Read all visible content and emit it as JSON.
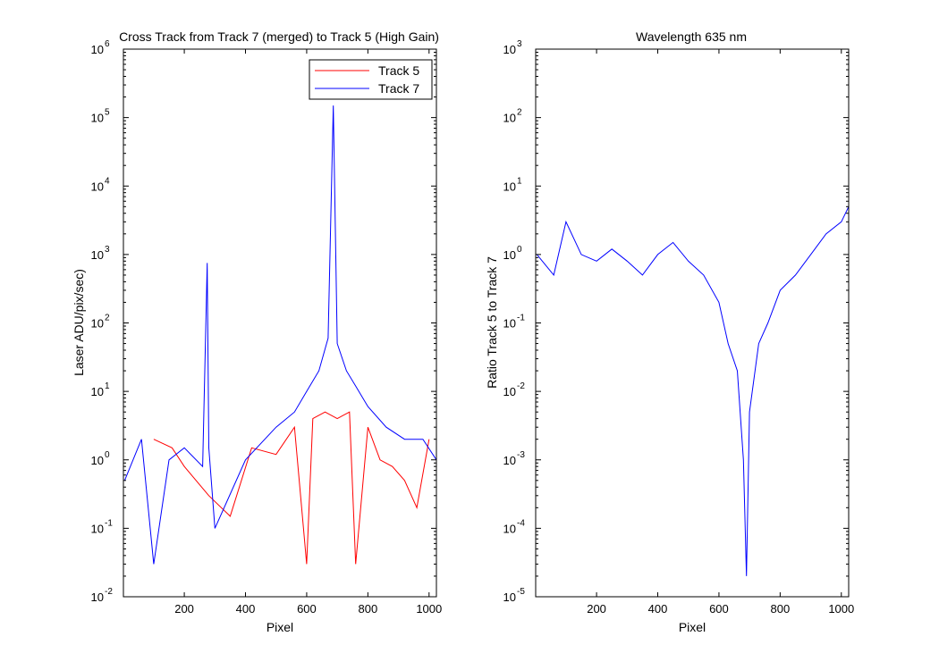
{
  "colors": {
    "track5": "#ff0000",
    "track7": "#0000ff",
    "axes": "#000000",
    "background": "#ffffff"
  },
  "chart_data": [
    {
      "type": "line",
      "title": "Cross Track from Track 7 (merged) to Track 5 (High Gain)",
      "xlabel": "Pixel",
      "ylabel": "Laser ADU/pix/sec)",
      "x_scale": "linear",
      "y_scale": "log",
      "xlim": [
        1,
        1024
      ],
      "ylim": [
        0.01,
        1000000
      ],
      "x_ticks": [
        200,
        400,
        600,
        800,
        1000
      ],
      "y_tick_exponents": [
        -2,
        -1,
        0,
        1,
        2,
        3,
        4,
        5,
        6
      ],
      "grid": false,
      "legend_position": "top-right",
      "legend": [
        "Track 5",
        "Track 7"
      ],
      "series": [
        {
          "name": "Track 5",
          "color": "#ff0000",
          "description_points": [
            [
              100,
              2
            ],
            [
              160,
              1.5
            ],
            [
              200,
              0.8
            ],
            [
              280,
              0.3
            ],
            [
              350,
              0.15
            ],
            [
              420,
              1.5
            ],
            [
              500,
              1.2
            ],
            [
              560,
              3
            ],
            [
              600,
              0.03
            ],
            [
              620,
              4
            ],
            [
              660,
              5
            ],
            [
              700,
              4
            ],
            [
              740,
              5
            ],
            [
              760,
              0.03
            ],
            [
              800,
              3
            ],
            [
              840,
              1
            ],
            [
              880,
              0.8
            ],
            [
              920,
              0.5
            ],
            [
              960,
              0.2
            ],
            [
              1000,
              2
            ]
          ]
        },
        {
          "name": "Track 7",
          "color": "#0000ff",
          "description_points": [
            [
              5,
              0.5
            ],
            [
              60,
              2
            ],
            [
              100,
              0.03
            ],
            [
              150,
              1
            ],
            [
              200,
              1.5
            ],
            [
              260,
              0.8
            ],
            [
              275,
              750
            ],
            [
              280,
              1.5
            ],
            [
              300,
              0.1
            ],
            [
              400,
              1
            ],
            [
              500,
              3
            ],
            [
              560,
              5
            ],
            [
              600,
              10
            ],
            [
              640,
              20
            ],
            [
              670,
              60
            ],
            [
              687,
              150000
            ],
            [
              700,
              50
            ],
            [
              730,
              20
            ],
            [
              760,
              12
            ],
            [
              800,
              6
            ],
            [
              860,
              3
            ],
            [
              920,
              2
            ],
            [
              980,
              2
            ],
            [
              1024,
              1
            ]
          ]
        }
      ]
    },
    {
      "type": "line",
      "title": "Wavelength 635 nm",
      "xlabel": "Pixel",
      "ylabel": "Ratio Track 5 to Track 7",
      "x_scale": "linear",
      "y_scale": "log",
      "xlim": [
        1,
        1024
      ],
      "ylim": [
        1e-05,
        1000
      ],
      "x_ticks": [
        200,
        400,
        600,
        800,
        1000
      ],
      "y_tick_exponents": [
        -5,
        -4,
        -3,
        -2,
        -1,
        0,
        1,
        2,
        3
      ],
      "grid": false,
      "series": [
        {
          "color": "#0000ff",
          "description_points": [
            [
              5,
              1
            ],
            [
              60,
              0.5
            ],
            [
              100,
              3
            ],
            [
              150,
              1
            ],
            [
              200,
              0.8
            ],
            [
              250,
              1.2
            ],
            [
              300,
              0.8
            ],
            [
              350,
              0.5
            ],
            [
              400,
              1
            ],
            [
              450,
              1.5
            ],
            [
              500,
              0.8
            ],
            [
              550,
              0.5
            ],
            [
              600,
              0.2
            ],
            [
              630,
              0.05
            ],
            [
              660,
              0.02
            ],
            [
              680,
              0.001
            ],
            [
              690,
              2e-05
            ],
            [
              700,
              0.005
            ],
            [
              730,
              0.05
            ],
            [
              760,
              0.1
            ],
            [
              800,
              0.3
            ],
            [
              850,
              0.5
            ],
            [
              900,
              1
            ],
            [
              950,
              2
            ],
            [
              1000,
              3
            ],
            [
              1024,
              5
            ]
          ]
        }
      ]
    }
  ]
}
